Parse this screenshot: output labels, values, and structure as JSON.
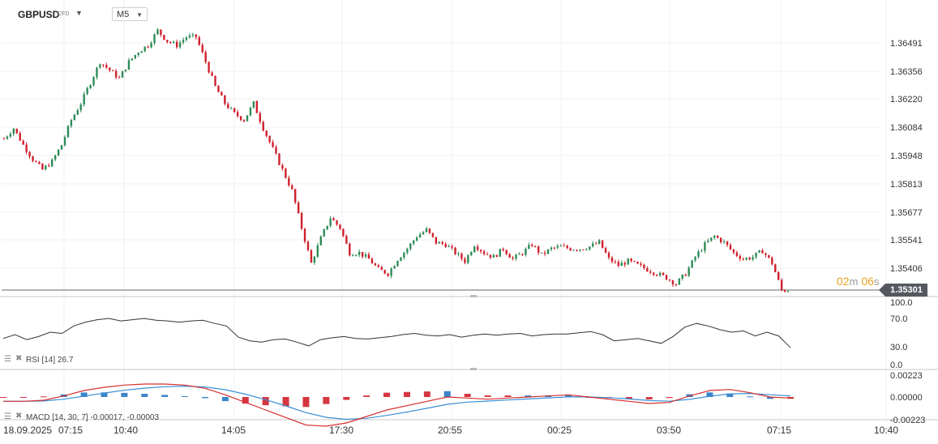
{
  "header": {
    "symbol": "GBPUSD",
    "symbol_type": "CFD",
    "timeframe": "M5"
  },
  "countdown": {
    "minutes": "02",
    "minutes_unit": "m",
    "seconds": "06",
    "seconds_unit": "s"
  },
  "current_price_label": "1.35301",
  "colors": {
    "up": "#2e8b57",
    "down": "#d0202c",
    "rsi_line": "#333333",
    "macd_line": "#d62f2f",
    "signal_line": "#3a8fd6",
    "hist_pos": "#2677c4",
    "hist_neg": "#d0202c",
    "countdown": "#f0a020",
    "price_tag": "#55595f"
  },
  "price_axis": {
    "ticks": [
      "1.36491",
      "1.36356",
      "1.36220",
      "1.36084",
      "1.35948",
      "1.35813",
      "1.35677",
      "1.35541",
      "1.35406"
    ]
  },
  "time_axis": {
    "ticks": [
      "18.09.2025",
      "07:15",
      "10:40",
      "14:05",
      "17:30",
      "20:55",
      "00:25",
      "03:50",
      "07:15",
      "10:40"
    ]
  },
  "rsi_panel": {
    "label": "RSI [14]",
    "value": "26.7",
    "axis_ticks": [
      "100.0",
      "70.0",
      "30.0",
      "0.0"
    ]
  },
  "macd_panel": {
    "label": "MACD [14, 30, 7]",
    "value1": "-0.00017,",
    "value2": "-0.00003",
    "axis_ticks": [
      "0.00223",
      "0.00000",
      "-0.00223"
    ]
  },
  "chart_data": {
    "type": "candlestick",
    "symbol": "GBPUSD",
    "timeframe": "M5",
    "ylim": [
      1.353,
      1.366
    ],
    "close_series_approx": [
      1.3603,
      1.3608,
      1.36,
      1.3593,
      1.3588,
      1.3592,
      1.36,
      1.3612,
      1.362,
      1.363,
      1.364,
      1.3636,
      1.3632,
      1.364,
      1.3645,
      1.3648,
      1.3655,
      1.365,
      1.3648,
      1.3652,
      1.3652,
      1.364,
      1.3628,
      1.362,
      1.3615,
      1.3612,
      1.362,
      1.3608,
      1.3598,
      1.3588,
      1.3578,
      1.356,
      1.3543,
      1.3555,
      1.3565,
      1.356,
      1.3548,
      1.3548,
      1.3545,
      1.354,
      1.3538,
      1.3545,
      1.355,
      1.3556,
      1.3559,
      1.3553,
      1.3552,
      1.3548,
      1.3544,
      1.3552,
      1.3548,
      1.3546,
      1.355,
      1.3545,
      1.3548,
      1.3552,
      1.3547,
      1.355,
      1.3551,
      1.355,
      1.355,
      1.3551,
      1.3553,
      1.3545,
      1.3542,
      1.3544,
      1.3542,
      1.354,
      1.3538,
      1.3536,
      1.3533,
      1.3538,
      1.3546,
      1.3552,
      1.3556,
      1.3553,
      1.3548,
      1.3545,
      1.3546,
      1.3549,
      1.3543,
      1.353
    ],
    "rsi_series_approx": [
      42,
      48,
      40,
      45,
      52,
      50,
      62,
      68,
      72,
      74,
      70,
      72,
      74,
      71,
      70,
      68,
      70,
      71,
      66,
      62,
      44,
      38,
      36,
      40,
      41,
      36,
      30,
      40,
      43,
      45,
      42,
      41,
      43,
      45,
      48,
      50,
      47,
      46,
      48,
      44,
      47,
      49,
      47,
      49,
      50,
      46,
      48,
      49,
      49,
      51,
      53,
      48,
      38,
      40,
      42,
      38,
      34,
      45,
      60,
      66,
      62,
      56,
      52,
      54,
      46,
      52,
      46,
      27
    ],
    "macd_series_approx": [
      -0.0004,
      -0.0004,
      -0.0003,
      0.0001,
      0.0006,
      0.0009,
      0.0011,
      0.0012,
      0.0012,
      0.0011,
      0.0008,
      0.0002,
      -0.0005,
      -0.0012,
      -0.0019,
      -0.0026,
      -0.0027,
      -0.0024,
      -0.0018,
      -0.0012,
      -0.0008,
      -0.0004,
      0.0,
      -0.0001,
      -0.0002,
      -0.0001,
      0.0,
      0.0001,
      0.0002,
      0.0,
      -0.0002,
      -0.0004,
      -0.0006,
      -0.0005,
      0.0001,
      0.0006,
      0.0007,
      0.0004,
      0.0,
      -0.0001
    ]
  }
}
